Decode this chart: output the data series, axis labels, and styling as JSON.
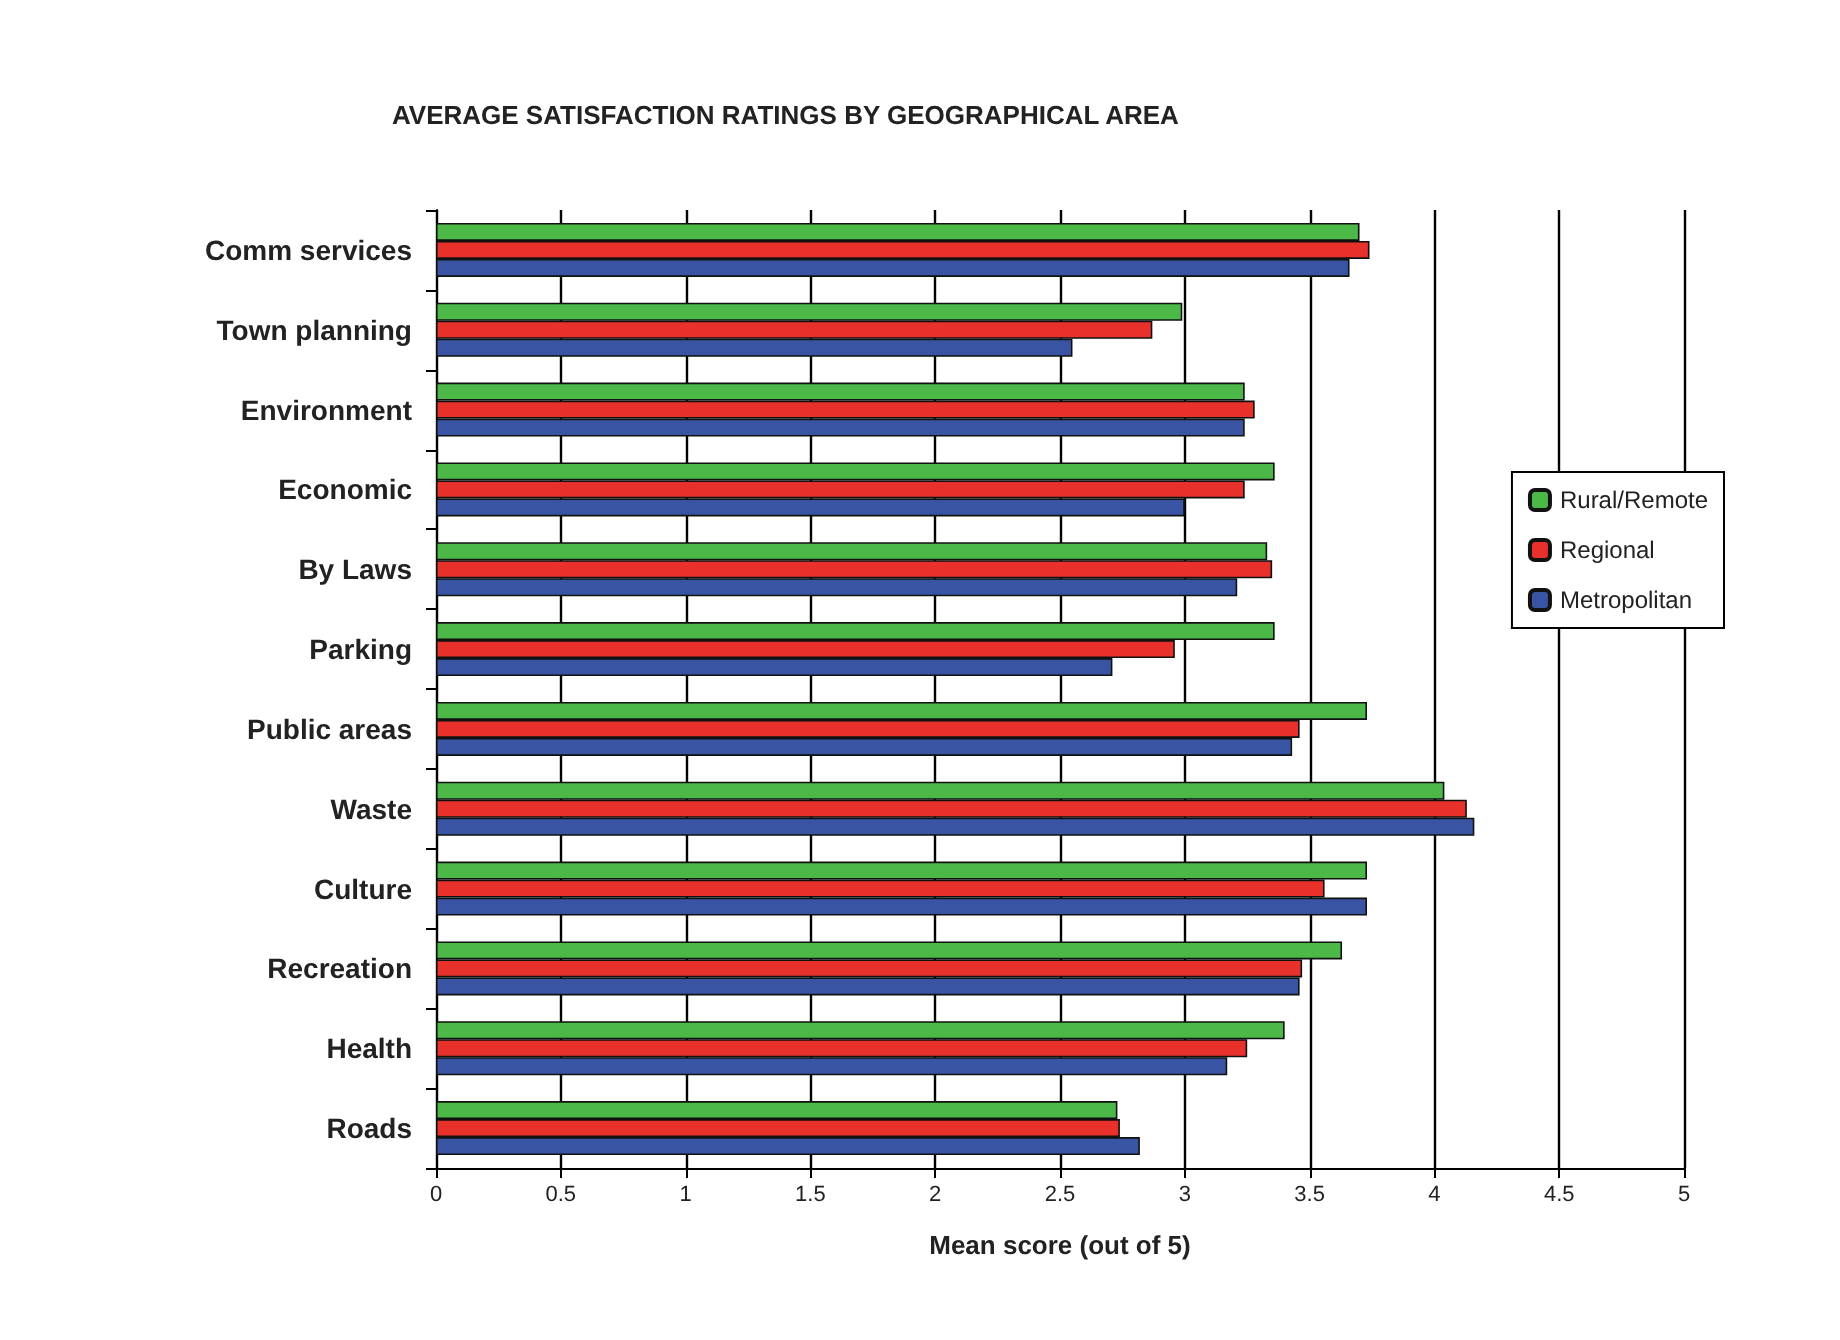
{
  "chart_data": {
    "type": "bar",
    "orientation": "horizontal",
    "title": "AVERAGE SATISFACTION RATINGS BY GEOGRAPHICAL AREA",
    "xlabel": "Mean score (out of 5)",
    "categories": [
      "Comm services",
      "Town planning",
      "Environment",
      "Economic",
      "By Laws",
      "Parking",
      "Public areas",
      "Waste",
      "Culture",
      "Recreation",
      "Health",
      "Roads"
    ],
    "series": [
      {
        "name": "Rural/Remote",
        "color": "#4cb848",
        "values": [
          3.7,
          2.99,
          3.24,
          3.36,
          3.33,
          3.36,
          3.73,
          4.04,
          3.73,
          3.63,
          3.4,
          2.73
        ]
      },
      {
        "name": "Regional",
        "color": "#e8312a",
        "values": [
          3.74,
          2.87,
          3.28,
          3.24,
          3.35,
          2.96,
          3.46,
          4.13,
          3.56,
          3.47,
          3.25,
          2.74
        ]
      },
      {
        "name": "Metropolitan",
        "color": "#3a54a4",
        "values": [
          3.66,
          2.55,
          3.24,
          3.0,
          3.21,
          2.71,
          3.43,
          4.16,
          3.73,
          3.46,
          3.17,
          2.82
        ]
      }
    ],
    "xlim": [
      0,
      5
    ],
    "xticks": [
      0,
      0.5,
      1,
      1.5,
      2,
      2.5,
      3,
      3.5,
      4,
      4.5,
      5
    ],
    "grid": "x",
    "legend": "right"
  }
}
